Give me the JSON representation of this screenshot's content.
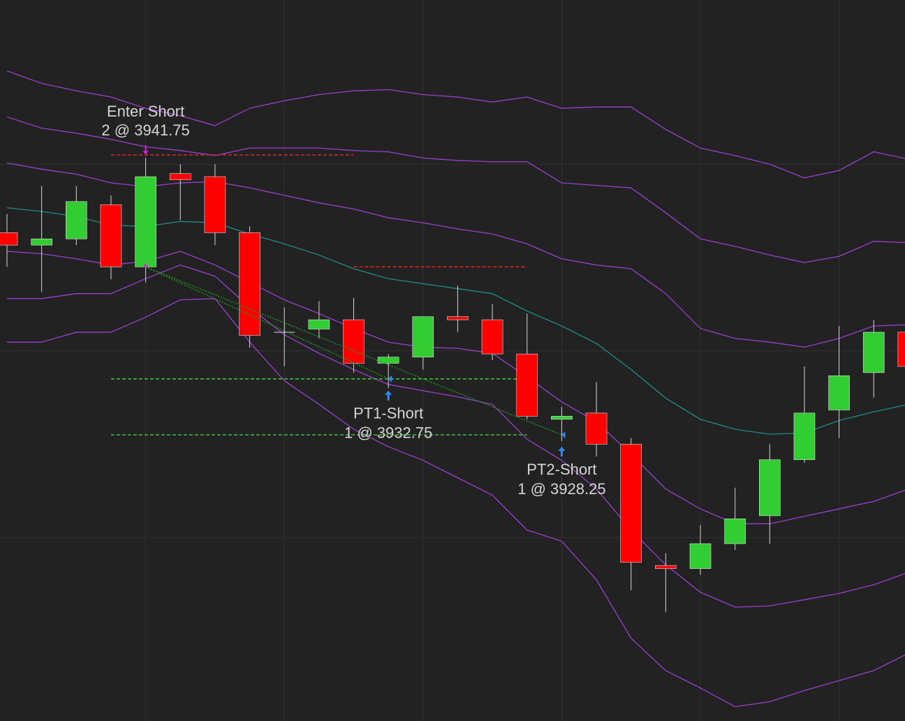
{
  "chart_data": {
    "type": "candlestick",
    "categories": [
      null,
      null,
      null,
      null,
      null,
      null,
      null,
      null,
      null,
      null,
      null,
      null,
      null,
      null,
      null,
      null,
      null,
      null,
      null,
      null,
      null,
      null,
      null,
      null,
      null,
      null,
      null
    ],
    "open": [
      3944.5,
      3943.5,
      3944,
      3946.75,
      3941.75,
      3949.25,
      3949,
      3944.5,
      3936.5,
      3936.75,
      3937.5,
      3934,
      3934.5,
      3937.75,
      3937.5,
      3934.75,
      3929.5,
      3930,
      3927.5,
      3917.75,
      3917.5,
      3919.5,
      3921.75,
      3926.25,
      3930.25,
      3933.25,
      3936.5
    ],
    "high": [
      3946,
      3948.25,
      3948.25,
      3947.5,
      3950.5,
      3950,
      3950,
      3945,
      3938.5,
      3939,
      3939.25,
      3934.75,
      3937.75,
      3940.25,
      3938.75,
      3938,
      3930.5,
      3932.5,
      3928,
      3918.75,
      3921,
      3924,
      3927.5,
      3933.75,
      3937,
      3937.5,
      3937
    ],
    "low": [
      3941.75,
      3939.75,
      3943.5,
      3940.75,
      3940.5,
      3945.5,
      3943.5,
      3935.25,
      3933.75,
      3936,
      3933.25,
      3932,
      3933.5,
      3936.5,
      3934.25,
      3929.5,
      3927.75,
      3926.5,
      3915.75,
      3914,
      3917,
      3919,
      3919.5,
      3926,
      3928,
      3931.25,
      3933.75
    ],
    "close": [
      3943.5,
      3944,
      3947,
      3941.75,
      3949,
      3948.75,
      3944.5,
      3936.25,
      3936.5,
      3937.5,
      3934,
      3934.5,
      3937.75,
      3937.5,
      3934.75,
      3929.75,
      3929.75,
      3927.5,
      3918,
      3917.5,
      3919.5,
      3921.5,
      3926.25,
      3930,
      3933,
      3936.5,
      3933.75
    ],
    "up_color": "#32cd32",
    "down_color": "#ff0000",
    "wick_color": "#d8d8d8",
    "bands": [
      {
        "color": "#9b40d0",
        "values": [
          3957.5,
          3956.5,
          3955.9,
          3955.4,
          3954.5,
          3953.9,
          3953.1,
          3954.5,
          3955.1,
          3955.6,
          3955.9,
          3956.0,
          3955.6,
          3955.4,
          3955.0,
          3955.4,
          3954.5,
          3954.6,
          3954.6,
          3952.8,
          3951.3,
          3950.7,
          3950.0,
          3948.9,
          3949.5,
          3951.0,
          3950.4
        ]
      },
      {
        "color": "#9b40d0",
        "values": [
          3953.8,
          3952.9,
          3952.5,
          3952.0,
          3951.4,
          3951.1,
          3950.7,
          3951.3,
          3951.3,
          3951.3,
          3951.1,
          3951.0,
          3950.5,
          3950.3,
          3950.2,
          3950.2,
          3948.5,
          3948.3,
          3948.1,
          3946.1,
          3944.0,
          3943.4,
          3942.7,
          3942.1,
          3942.6,
          3943.8,
          3943.7
        ]
      },
      {
        "color": "#9b40d0",
        "values": [
          3950.1,
          3949.6,
          3949.2,
          3948.5,
          3948.2,
          3948.5,
          3948.6,
          3948.1,
          3947.5,
          3946.9,
          3946.4,
          3945.7,
          3945.3,
          3944.8,
          3944.4,
          3943.6,
          3942.4,
          3941.9,
          3941.6,
          3939.6,
          3936.8,
          3936.0,
          3935.7,
          3935.3,
          3936.0,
          3937.0,
          3937.1
        ]
      },
      {
        "color": "#1f8c8c",
        "values": [
          3946.5,
          3946.2,
          3945.8,
          3945.1,
          3945.0,
          3945.4,
          3945.3,
          3944.4,
          3943.6,
          3942.7,
          3941.6,
          3940.8,
          3940.4,
          3940.0,
          3939.6,
          3938.2,
          3937.0,
          3935.6,
          3933.5,
          3931.2,
          3929.5,
          3928.7,
          3928.3,
          3928.4,
          3929.4,
          3930.1,
          3930.7
        ]
      },
      {
        "color": "#9b40d0",
        "values": [
          3943.0,
          3942.8,
          3942.4,
          3941.9,
          3942.2,
          3943.0,
          3941.9,
          3940.5,
          3939.1,
          3938.0,
          3936.8,
          3935.7,
          3935.3,
          3935.2,
          3934.8,
          3932.9,
          3930.9,
          3929.3,
          3926.7,
          3923.9,
          3922.3,
          3921.1,
          3921.1,
          3921.7,
          3922.3,
          3922.9,
          3923.9
        ]
      },
      {
        "color": "#9b40d0",
        "values": [
          3939.2,
          3939.2,
          3939.6,
          3939.6,
          3940.8,
          3941.9,
          3941.0,
          3938.5,
          3936.3,
          3934.8,
          3933.5,
          3932.3,
          3931.8,
          3931.3,
          3930.7,
          3927.9,
          3926.2,
          3923.9,
          3920.6,
          3917.8,
          3915.6,
          3914.4,
          3914.5,
          3915.0,
          3915.5,
          3916.2,
          3917.2
        ]
      },
      {
        "color": "#9b40d0",
        "values": [
          3935.7,
          3935.7,
          3936.5,
          3936.5,
          3937.7,
          3939.1,
          3939.2,
          3935.7,
          3932.6,
          3930.7,
          3928.7,
          3927.3,
          3926.2,
          3924.8,
          3923.4,
          3920.6,
          3919.7,
          3916.6,
          3911.9,
          3909.3,
          3907.9,
          3906.4,
          3906.8,
          3907.7,
          3908.5,
          3909.3,
          3910.7
        ]
      }
    ],
    "order_lines": [
      {
        "value": 3950.75,
        "color": "#e02020",
        "bars": [
          3,
          10
        ]
      },
      {
        "value": 3941.75,
        "color": "#e02020",
        "bars": [
          10,
          15
        ]
      },
      {
        "value": 3932.75,
        "color": "#2ecc2e",
        "bars": [
          3,
          15
        ]
      },
      {
        "value": 3928.25,
        "color": "#2ecc2e",
        "bars": [
          3,
          15
        ]
      }
    ],
    "trades": [
      {
        "label": "Enter Short",
        "detail": "2 @ 3941.75",
        "bar": 4,
        "price": 3941.75,
        "color": "#e020e0"
      },
      {
        "label": "PT1-Short",
        "detail": "1 @ 3932.75",
        "bar": 11,
        "price": 3932.75,
        "color": "#2a8cff"
      },
      {
        "label": "PT2-Short",
        "detail": "1 @ 3928.25",
        "bar": 16,
        "price": 3928.25,
        "color": "#2a8cff"
      }
    ],
    "connector_color": "#1f9a1f",
    "ylim": [
      3905.25,
      3963.2
    ],
    "ygrid": [
      3950,
      3935,
      3920
    ],
    "grid": true
  }
}
